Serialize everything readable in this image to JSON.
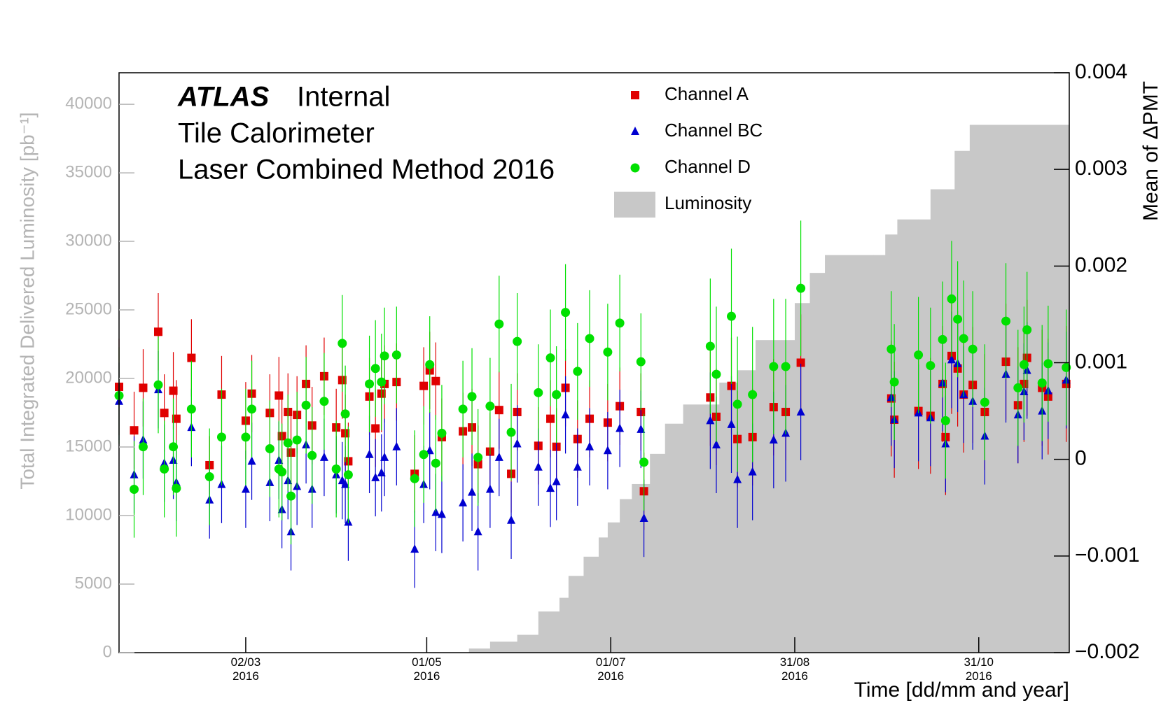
{
  "chart_data": {
    "type": "scatter",
    "title": "ATLAS",
    "status": "Internal",
    "subtitle": [
      "Tile Calorimeter",
      "Laser Combined Method 2016"
    ],
    "xlabel": "Time [dd/mm and year]",
    "ylabel": "Total Integrated Delivered Luminosity [pb⁻¹]",
    "y2label": "Mean of ΔPMT",
    "xlim": [
      "2016-01-20",
      "2016-11-30"
    ],
    "xticks": [
      {
        "value": "2016-03-02",
        "label": "02/03\n2016"
      },
      {
        "value": "2016-05-01",
        "label": "01/05\n2016"
      },
      {
        "value": "2016-07-01",
        "label": "01/07\n2016"
      },
      {
        "value": "2016-08-31",
        "label": "31/08\n2016"
      },
      {
        "value": "2016-10-31",
        "label": "31/10\n2016"
      }
    ],
    "ylim": [
      0,
      42300
    ],
    "yticks": [
      0,
      5000,
      10000,
      15000,
      20000,
      25000,
      30000,
      35000,
      40000
    ],
    "y2lim": [
      -0.002,
      0.004
    ],
    "y2ticks": [
      {
        "value": -0.002,
        "label": "−0.002"
      },
      {
        "value": -0.001,
        "label": "−0.001"
      },
      0,
      0.001,
      0.002,
      0.003,
      0.004
    ],
    "x": [
      "2016-01-20",
      "2016-01-25",
      "2016-01-28",
      "2016-02-02",
      "2016-02-04",
      "2016-02-07",
      "2016-02-08",
      "2016-02-13",
      "2016-02-19",
      "2016-02-23",
      "2016-03-02",
      "2016-03-04",
      "2016-03-10",
      "2016-03-13",
      "2016-03-14",
      "2016-03-16",
      "2016-03-17",
      "2016-03-19",
      "2016-03-22",
      "2016-03-24",
      "2016-03-28",
      "2016-04-01",
      "2016-04-03",
      "2016-04-04",
      "2016-04-05",
      "2016-04-12",
      "2016-04-14",
      "2016-04-16",
      "2016-04-17",
      "2016-04-21",
      "2016-04-27",
      "2016-04-30",
      "2016-05-02",
      "2016-05-04",
      "2016-05-06",
      "2016-05-13",
      "2016-05-16",
      "2016-05-18",
      "2016-05-22",
      "2016-05-25",
      "2016-05-29",
      "2016-05-31",
      "2016-06-07",
      "2016-06-11",
      "2016-06-13",
      "2016-06-16",
      "2016-06-20",
      "2016-06-24",
      "2016-06-30",
      "2016-07-04",
      "2016-07-11",
      "2016-07-12",
      "2016-08-03",
      "2016-08-05",
      "2016-08-10",
      "2016-08-12",
      "2016-08-17",
      "2016-08-24",
      "2016-08-28",
      "2016-09-02",
      "2016-10-02",
      "2016-10-03",
      "2016-10-11",
      "2016-10-15",
      "2016-10-19",
      "2016-10-20",
      "2016-10-22",
      "2016-10-24",
      "2016-10-26",
      "2016-10-29",
      "2016-11-02",
      "2016-11-09",
      "2016-11-13",
      "2016-11-15",
      "2016-11-16",
      "2016-11-21",
      "2016-11-23",
      "2016-11-29"
    ],
    "series": [
      {
        "name": "Luminosity",
        "type": "area",
        "color": "#c8c8c8",
        "axis": "y",
        "x": [
          "2016-05-10",
          "2016-05-15",
          "2016-05-22",
          "2016-05-31",
          "2016-06-07",
          "2016-06-14",
          "2016-06-17",
          "2016-06-22",
          "2016-06-27",
          "2016-06-30",
          "2016-07-04",
          "2016-07-08",
          "2016-07-14",
          "2016-07-19",
          "2016-07-25",
          "2016-08-02",
          "2016-08-06",
          "2016-08-12",
          "2016-08-18",
          "2016-08-28",
          "2016-08-31",
          "2016-09-05",
          "2016-09-10",
          "2016-09-26",
          "2016-09-30",
          "2016-10-04",
          "2016-10-11",
          "2016-10-15",
          "2016-10-23",
          "2016-10-28",
          "2016-11-29"
        ],
        "values": [
          0,
          300,
          800,
          1300,
          3000,
          4000,
          5600,
          7000,
          8400,
          9500,
          11200,
          12300,
          14500,
          16700,
          18100,
          18100,
          19700,
          20600,
          22800,
          22800,
          25500,
          27700,
          29000,
          29000,
          30500,
          31600,
          31600,
          33800,
          36600,
          38500,
          38500
        ]
      },
      {
        "name": "Channel A",
        "color": "#e00000",
        "marker": "square",
        "axis": "y2",
        "values": [
          0.00075,
          0.0003,
          0.00074,
          0.00132,
          0.00048,
          0.00071,
          0.00042,
          0.00105,
          -6e-05,
          0.00067,
          0.0004,
          0.00068,
          0.00048,
          0.00066,
          0.00024,
          0.00049,
          7e-05,
          0.00046,
          0.00078,
          0.00035,
          0.00086,
          0.00033,
          0.00082,
          0.00027,
          -2e-05,
          0.00065,
          0.00032,
          0.00068,
          0.00078,
          0.0008,
          -0.00015,
          0.00076,
          0.00092,
          0.00081,
          0.00023,
          0.00029,
          0.00033,
          -5e-05,
          8e-05,
          0.00051,
          -0.00015,
          0.00049,
          0.00014,
          0.00042,
          0.00013,
          0.00074,
          0.00021,
          0.00042,
          0.00038,
          0.00055,
          0.00049,
          -0.00033,
          0.00064,
          0.00044,
          0.00076,
          0.00021,
          0.00023,
          0.00054,
          0.00049,
          0.001,
          0.00063,
          0.00041,
          0.0005,
          0.00045,
          0.00078,
          0.00023,
          0.00107,
          0.00094,
          0.00067,
          0.00077,
          0.00049,
          0.00101,
          0.00056,
          0.00078,
          0.00105,
          0.00074,
          0.00065,
          0.00078
        ],
        "errors": [
          0.0005,
          0.0004,
          0.0004,
          0.0004,
          0.0004,
          0.0004,
          0.0004,
          0.0004,
          0.0003,
          0.0004,
          0.0004,
          0.0004,
          0.0004,
          0.0004,
          0.0004,
          0.0004,
          0.0004,
          0.0004,
          0.0004,
          0.0004,
          0.0004,
          0.0004,
          0.0004,
          0.0004,
          0.0004,
          0.0004,
          0.0004,
          0.0004,
          0.0004,
          0.0004,
          0.0004,
          0.0004,
          0.0004,
          0.0004,
          0.0004,
          0.0004,
          0.0004,
          0.0004,
          0.0004,
          0.0004,
          0.0004,
          0.0004,
          0.0004,
          0.0004,
          0.0004,
          0.0004,
          0.0004,
          0.0004,
          0.0004,
          0.0004,
          0.0004,
          0.0004,
          0.0005,
          0.0005,
          0.0005,
          0.0005,
          0.0005,
          0.0005,
          0.0005,
          0.0005,
          0.0006,
          0.0006,
          0.0006,
          0.0006,
          0.0006,
          0.0006,
          0.0006,
          0.0006,
          0.0006,
          0.0006,
          0.0006,
          0.0006,
          0.0006,
          0.0006,
          0.0006,
          0.0006,
          0.0006,
          0.0006
        ]
      },
      {
        "name": "Channel BC",
        "color": "#0000d0",
        "marker": "triangle",
        "axis": "y2",
        "values": [
          0.0006,
          -0.00016,
          0.0002,
          0.00072,
          -4e-05,
          -1e-05,
          -0.00024,
          0.00033,
          -0.00042,
          -0.00026,
          -0.00031,
          -2e-05,
          -0.00024,
          -1e-05,
          -0.00052,
          -0.00022,
          -0.00075,
          -0.00028,
          0.00015,
          -0.00031,
          2e-05,
          -0.00016,
          -0.00022,
          -0.00026,
          -0.00065,
          5e-05,
          -0.00019,
          -0.00014,
          2e-05,
          0.00013,
          -0.00093,
          -0.00026,
          9e-05,
          -0.00055,
          -0.00057,
          -0.00045,
          -0.00034,
          -0.00075,
          -0.00031,
          2e-05,
          -0.00063,
          0.00016,
          -8e-05,
          -0.0003,
          -0.00023,
          0.00046,
          -8e-05,
          0.00013,
          9e-05,
          0.00032,
          0.00031,
          -0.00061,
          0.0004,
          0.00015,
          0.00036,
          -0.00021,
          -0.00013,
          0.0002,
          0.00027,
          0.00049,
          0.00064,
          0.00041,
          0.00048,
          0.00043,
          0.00079,
          0.00016,
          0.00103,
          0.00099,
          0.00067,
          0.0006,
          0.00024,
          0.00088,
          0.00046,
          0.0007,
          0.00092,
          0.0005,
          0.00071,
          0.00082
        ],
        "errors": [
          0.0004,
          0.0004,
          0.0004,
          0.0004,
          0.0004,
          0.0004,
          0.0004,
          0.0004,
          0.0004,
          0.0004,
          0.0004,
          0.0004,
          0.0004,
          0.0004,
          0.0004,
          0.0004,
          0.0004,
          0.0004,
          0.0004,
          0.0004,
          0.0004,
          0.0004,
          0.0004,
          0.0004,
          0.0004,
          0.0004,
          0.0004,
          0.0004,
          0.0004,
          0.0004,
          0.0004,
          0.0004,
          0.0004,
          0.0004,
          0.0004,
          0.0004,
          0.0004,
          0.0004,
          0.0004,
          0.0004,
          0.0004,
          0.0004,
          0.0004,
          0.0004,
          0.0004,
          0.0004,
          0.0004,
          0.0004,
          0.0004,
          0.0004,
          0.0004,
          0.0004,
          0.0005,
          0.0005,
          0.0005,
          0.0005,
          0.0005,
          0.0005,
          0.0005,
          0.0005,
          0.0005,
          0.0005,
          0.0005,
          0.0005,
          0.0005,
          0.0005,
          0.0005,
          0.0005,
          0.0005,
          0.0005,
          0.0005,
          0.0005,
          0.0005,
          0.0005,
          0.0005,
          0.0005,
          0.0005,
          0.0005
        ]
      },
      {
        "name": "Channel D",
        "color": "#00e000",
        "marker": "circle",
        "axis": "y2",
        "values": [
          0.00066,
          -0.00031,
          0.00013,
          0.00077,
          -0.0001,
          0.00013,
          -0.0003,
          0.00052,
          -0.00018,
          0.00023,
          0.00023,
          0.00052,
          0.00011,
          -0.0001,
          -0.00013,
          0.00017,
          -0.00038,
          0.0002,
          0.00056,
          4e-05,
          0.0006,
          -0.0001,
          0.0012,
          0.00047,
          -0.00016,
          0.00078,
          0.00094,
          0.0008,
          0.00107,
          0.00108,
          -0.0002,
          5e-05,
          0.00098,
          -4e-05,
          0.00027,
          0.00052,
          0.00065,
          2e-05,
          0.00055,
          0.0014,
          0.00028,
          0.00122,
          0.00069,
          0.00105,
          0.00067,
          0.00152,
          0.00091,
          0.00125,
          0.00111,
          0.00141,
          0.00101,
          -3e-05,
          0.00117,
          0.00088,
          0.00148,
          0.00057,
          0.00067,
          0.00096,
          0.00096,
          0.00177,
          0.00114,
          0.0008,
          0.00108,
          0.00097,
          0.00124,
          0.0004,
          0.00166,
          0.00145,
          0.00125,
          0.00114,
          0.00059,
          0.00143,
          0.00074,
          0.00098,
          0.00134,
          0.00079,
          0.00099,
          0.00095
        ],
        "errors": [
          0.0005,
          0.0005,
          0.0005,
          0.0005,
          0.0005,
          0.0005,
          0.0005,
          0.0005,
          0.0005,
          0.0005,
          0.0005,
          0.0005,
          0.0005,
          0.0005,
          0.0005,
          0.0005,
          0.0005,
          0.0005,
          0.0005,
          0.0005,
          0.0005,
          0.0005,
          0.0005,
          0.0005,
          0.0005,
          0.0005,
          0.0005,
          0.0005,
          0.0005,
          0.0005,
          0.0005,
          0.0005,
          0.0005,
          0.0005,
          0.0005,
          0.0005,
          0.0005,
          0.0005,
          0.0005,
          0.0005,
          0.0005,
          0.0005,
          0.0005,
          0.0005,
          0.0005,
          0.0005,
          0.0005,
          0.0005,
          0.0005,
          0.0005,
          0.0005,
          0.0005,
          0.0007,
          0.0007,
          0.0007,
          0.0007,
          0.0007,
          0.0007,
          0.0007,
          0.0007,
          0.0006,
          0.0006,
          0.0006,
          0.0006,
          0.0006,
          0.0006,
          0.0006,
          0.0006,
          0.0006,
          0.0006,
          0.0006,
          0.0006,
          0.0006,
          0.0006,
          0.0006,
          0.0006,
          0.0006,
          0.0006
        ]
      }
    ],
    "ytick_color": "#b4b4b4"
  }
}
